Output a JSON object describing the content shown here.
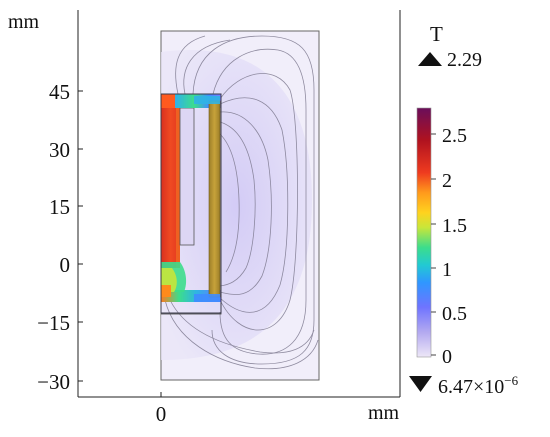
{
  "plot": {
    "x_unit": "mm",
    "y_unit": "mm",
    "x_ticks": [
      "0"
    ],
    "y_ticks": [
      "45",
      "30",
      "15",
      "0",
      "−30"
    ],
    "y_tick_values": [
      45,
      30,
      15,
      0,
      -30
    ],
    "y_neg15_label": "−15",
    "y_neg15_value": -15
  },
  "colorbar": {
    "unit": "T",
    "max_value": "2.29",
    "min_value": "6.47×10",
    "min_exponent": "−6",
    "tick_labels": [
      "2.5",
      "2",
      "1.5",
      "1",
      "0.5",
      "0"
    ],
    "tick_values": [
      2.5,
      2,
      1.5,
      1,
      0.5,
      0
    ],
    "range": [
      0,
      2.8
    ],
    "max_marker_icon": "triangle-up-icon",
    "min_marker_icon": "triangle-down-icon",
    "colormap": [
      "#e9e1f6",
      "#9a8df0",
      "#3f6bff",
      "#21bdd9",
      "#3cdd8c",
      "#c8e63a",
      "#ffd21e",
      "#ff9a1c",
      "#ef3b1f",
      "#b0121f",
      "#6a0e5a"
    ]
  },
  "colors": {
    "region_background": "#e6e1f7",
    "outer_field_background": "#f3f1fb",
    "high_field": "#e63b20",
    "pole_piece": "#b8952e",
    "field_line": "#7e7a90"
  }
}
